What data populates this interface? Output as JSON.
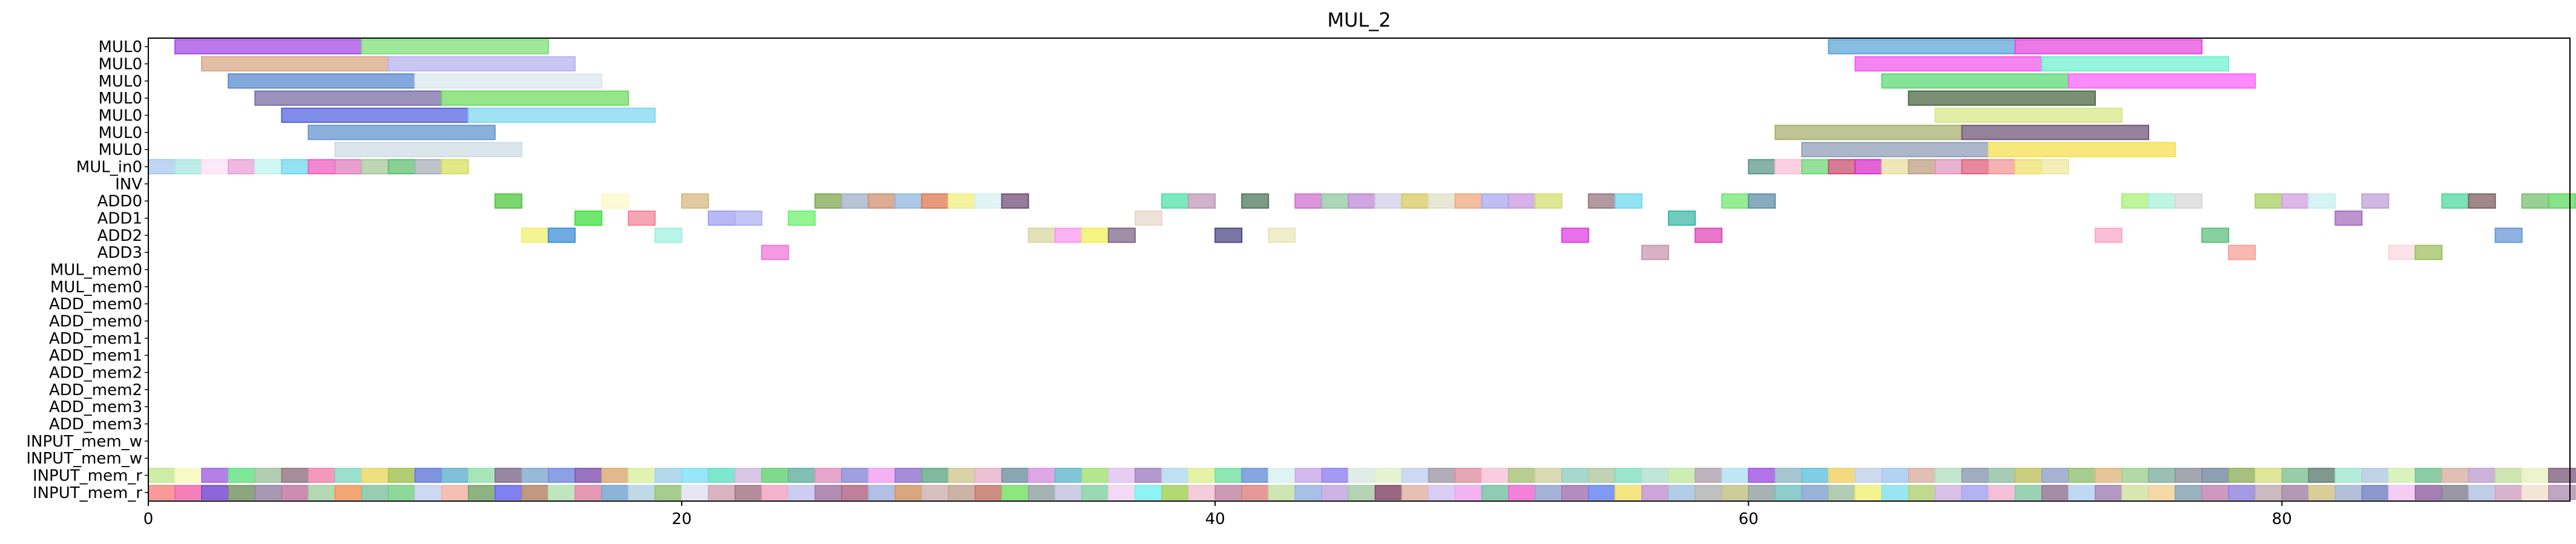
{
  "chart_data": {
    "type": "gantt",
    "title": "MUL_2",
    "xlim": [
      0,
      90.8
    ],
    "x_ticks": [
      0,
      20,
      40,
      60,
      80
    ],
    "rows": [
      "MUL0",
      "MUL0",
      "MUL0",
      "MUL0",
      "MUL0",
      "MUL0",
      "MUL0",
      "MUL_in0",
      "INV",
      "ADD0",
      "ADD1",
      "ADD2",
      "ADD3",
      "MUL_mem0",
      "MUL_mem0",
      "ADD_mem0",
      "ADD_mem0",
      "ADD_mem1",
      "ADD_mem1",
      "ADD_mem2",
      "ADD_mem2",
      "ADD_mem3",
      "ADD_mem3",
      "INPUT_mem_w",
      "INPUT_mem_w",
      "INPUT_mem_r",
      "INPUT_mem_r"
    ],
    "bars": [
      {
        "row": 0,
        "x0": 1.0,
        "x1": 8.0,
        "color": "#a64ce6"
      },
      {
        "row": 0,
        "x0": 8.0,
        "x1": 15.0,
        "color": "#7fe07a"
      },
      {
        "row": 0,
        "x0": 63.0,
        "x1": 70.0,
        "color": "#5fa6d9"
      },
      {
        "row": 0,
        "x0": 70.0,
        "x1": 77.0,
        "color": "#e64ce0"
      },
      {
        "row": 1,
        "x0": 2.0,
        "x1": 9.0,
        "color": "#d9a888"
      },
      {
        "row": 1,
        "x0": 9.0,
        "x1": 16.0,
        "color": "#b8b3f0"
      },
      {
        "row": 1,
        "x0": 64.0,
        "x1": 71.0,
        "color": "#f25cec"
      },
      {
        "row": 1,
        "x0": 71.0,
        "x1": 78.0,
        "color": "#70f0d0"
      },
      {
        "row": 2,
        "x0": 3.0,
        "x1": 10.0,
        "color": "#5a8cd0"
      },
      {
        "row": 2,
        "x0": 10.0,
        "x1": 17.0,
        "color": "#dbe8ee"
      },
      {
        "row": 2,
        "x0": 65.0,
        "x1": 72.0,
        "color": "#5cd978"
      },
      {
        "row": 2,
        "x0": 72.0,
        "x1": 79.0,
        "color": "#ff66ff"
      },
      {
        "row": 3,
        "x0": 4.0,
        "x1": 11.0,
        "color": "#7a6ea8"
      },
      {
        "row": 3,
        "x0": 11.0,
        "x1": 18.0,
        "color": "#70dd60"
      },
      {
        "row": 3,
        "x0": 66.0,
        "x1": 73.0,
        "color": "#4d6b45"
      },
      {
        "row": 4,
        "x0": 5.0,
        "x1": 12.0,
        "color": "#5566e0"
      },
      {
        "row": 4,
        "x0": 12.0,
        "x1": 19.0,
        "color": "#80d8f0"
      },
      {
        "row": 4,
        "x0": 67.0,
        "x1": 74.0,
        "color": "#d8e888"
      },
      {
        "row": 5,
        "x0": 6.0,
        "x1": 13.0,
        "color": "#6696d0"
      },
      {
        "row": 5,
        "x0": 61.0,
        "x1": 68.0,
        "color": "#a8b070"
      },
      {
        "row": 5,
        "x0": 68.0,
        "x1": 75.0,
        "color": "#705878"
      },
      {
        "row": 6,
        "x0": 7.0,
        "x1": 14.0,
        "color": "#cfdce6"
      },
      {
        "row": 6,
        "x0": 62.0,
        "x1": 69.0,
        "color": "#90a0b8"
      },
      {
        "row": 6,
        "x0": 69.0,
        "x1": 76.0,
        "color": "#f5e050"
      },
      {
        "row": 7,
        "x0": 0,
        "x1": 1,
        "color": "#a8c8f0"
      },
      {
        "row": 7,
        "x0": 1,
        "x1": 2,
        "color": "#a8e6e0"
      },
      {
        "row": 7,
        "x0": 2,
        "x1": 3,
        "color": "#fce0f4"
      },
      {
        "row": 7,
        "x0": 3,
        "x1": 4,
        "color": "#e8a0d8"
      },
      {
        "row": 7,
        "x0": 4,
        "x1": 5,
        "color": "#c0f4f0"
      },
      {
        "row": 7,
        "x0": 5,
        "x1": 6,
        "color": "#70d8ec"
      },
      {
        "row": 7,
        "x0": 6,
        "x1": 7,
        "color": "#f060c0"
      },
      {
        "row": 7,
        "x0": 7,
        "x1": 8,
        "color": "#e080c0"
      },
      {
        "row": 7,
        "x0": 8,
        "x1": 9,
        "color": "#a8c898"
      },
      {
        "row": 7,
        "x0": 9,
        "x1": 10,
        "color": "#60c070"
      },
      {
        "row": 7,
        "x0": 10,
        "x1": 11,
        "color": "#a8b0b8"
      },
      {
        "row": 7,
        "x0": 11,
        "x1": 12,
        "color": "#d8e060"
      },
      {
        "row": 7,
        "x0": 60,
        "x1": 61,
        "color": "#609888"
      },
      {
        "row": 7,
        "x0": 61,
        "x1": 62,
        "color": "#fcc0d8"
      },
      {
        "row": 7,
        "x0": 62,
        "x1": 63,
        "color": "#70d878"
      },
      {
        "row": 7,
        "x0": 63,
        "x1": 64,
        "color": "#c85070"
      },
      {
        "row": 7,
        "x0": 64,
        "x1": 65,
        "color": "#d830c8"
      },
      {
        "row": 7,
        "x0": 65,
        "x1": 66,
        "color": "#e8e0a0"
      },
      {
        "row": 7,
        "x0": 66,
        "x1": 67,
        "color": "#c0a080"
      },
      {
        "row": 7,
        "x0": 67,
        "x1": 68,
        "color": "#e098c0"
      },
      {
        "row": 7,
        "x0": 68,
        "x1": 69,
        "color": "#e06080"
      },
      {
        "row": 7,
        "x0": 69,
        "x1": 70,
        "color": "#f09898"
      },
      {
        "row": 7,
        "x0": 70,
        "x1": 71,
        "color": "#f0e070"
      },
      {
        "row": 7,
        "x0": 71,
        "x1": 72,
        "color": "#f0e8a0"
      },
      {
        "row": 9,
        "x0": 13,
        "x1": 14,
        "color": "#50c840"
      },
      {
        "row": 9,
        "x0": 17,
        "x1": 18,
        "color": "#fcf8c8"
      },
      {
        "row": 9,
        "x0": 20,
        "x1": 21,
        "color": "#d8b880"
      },
      {
        "row": 9,
        "x0": 25,
        "x1": 26,
        "color": "#80a850"
      },
      {
        "row": 9,
        "x0": 26,
        "x1": 27,
        "color": "#a0b0c8"
      },
      {
        "row": 9,
        "x0": 27,
        "x1": 28,
        "color": "#d09070"
      },
      {
        "row": 9,
        "x0": 28,
        "x1": 29,
        "color": "#90b8e0"
      },
      {
        "row": 9,
        "x0": 29,
        "x1": 30,
        "color": "#e07850"
      },
      {
        "row": 9,
        "x0": 30,
        "x1": 31,
        "color": "#f0f080"
      },
      {
        "row": 9,
        "x0": 31,
        "x1": 32,
        "color": "#d8f0f0"
      },
      {
        "row": 9,
        "x0": 32,
        "x1": 33,
        "color": "#705078"
      },
      {
        "row": 9,
        "x0": 38,
        "x1": 39,
        "color": "#50e0a8"
      },
      {
        "row": 9,
        "x0": 39,
        "x1": 40,
        "color": "#c098b8"
      },
      {
        "row": 9,
        "x0": 41,
        "x1": 42,
        "color": "#507860"
      },
      {
        "row": 9,
        "x0": 43,
        "x1": 44,
        "color": "#d070d0"
      },
      {
        "row": 9,
        "x0": 44,
        "x1": 45,
        "color": "#90c8a0"
      },
      {
        "row": 9,
        "x0": 45,
        "x1": 46,
        "color": "#c088d8"
      },
      {
        "row": 9,
        "x0": 46,
        "x1": 47,
        "color": "#d0d0e8"
      },
      {
        "row": 9,
        "x0": 47,
        "x1": 48,
        "color": "#d8c860"
      },
      {
        "row": 9,
        "x0": 48,
        "x1": 49,
        "color": "#e0e0c8"
      },
      {
        "row": 9,
        "x0": 49,
        "x1": 50,
        "color": "#f0a880"
      },
      {
        "row": 9,
        "x0": 50,
        "x1": 51,
        "color": "#a8a8f0"
      },
      {
        "row": 9,
        "x0": 51,
        "x1": 52,
        "color": "#c898e0"
      },
      {
        "row": 9,
        "x0": 52,
        "x1": 53,
        "color": "#d0e070"
      },
      {
        "row": 9,
        "x0": 54,
        "x1": 55,
        "color": "#987880"
      },
      {
        "row": 9,
        "x0": 55,
        "x1": 56,
        "color": "#70d8f0"
      },
      {
        "row": 9,
        "x0": 59,
        "x1": 60,
        "color": "#70e870"
      },
      {
        "row": 9,
        "x0": 60,
        "x1": 61,
        "color": "#6090a8"
      },
      {
        "row": 9,
        "x0": 74,
        "x1": 75,
        "color": "#a8f078"
      },
      {
        "row": 9,
        "x0": 75,
        "x1": 76,
        "color": "#a8f0d8"
      },
      {
        "row": 9,
        "x0": 76,
        "x1": 77,
        "color": "#d8d8d8"
      },
      {
        "row": 9,
        "x0": 79,
        "x1": 80,
        "color": "#a8d060"
      },
      {
        "row": 9,
        "x0": 80,
        "x1": 81,
        "color": "#d0a0e0"
      },
      {
        "row": 9,
        "x0": 81,
        "x1": 82,
        "color": "#c8f0f0"
      },
      {
        "row": 9,
        "x0": 83,
        "x1": 84,
        "color": "#c0a0d8"
      },
      {
        "row": 9,
        "x0": 86,
        "x1": 87,
        "color": "#50d8a0"
      },
      {
        "row": 9,
        "x0": 87,
        "x1": 88,
        "color": "#806060"
      },
      {
        "row": 9,
        "x0": 89,
        "x1": 90,
        "color": "#78c070"
      },
      {
        "row": 9,
        "x0": 90,
        "x1": 91,
        "color": "#60d860"
      },
      {
        "row": 10,
        "x0": 16,
        "x1": 17,
        "color": "#40e040"
      },
      {
        "row": 10,
        "x0": 18,
        "x1": 19,
        "color": "#f08898"
      },
      {
        "row": 10,
        "x0": 21,
        "x1": 22,
        "color": "#a0a0f0"
      },
      {
        "row": 10,
        "x0": 22,
        "x1": 23,
        "color": "#b0b0f0"
      },
      {
        "row": 10,
        "x0": 24,
        "x1": 25,
        "color": "#70f070"
      },
      {
        "row": 10,
        "x0": 37,
        "x1": 38,
        "color": "#e8d8c8"
      },
      {
        "row": 10,
        "x0": 57,
        "x1": 58,
        "color": "#40b8a8"
      },
      {
        "row": 10,
        "x0": 82,
        "x1": 83,
        "color": "#a870c0"
      },
      {
        "row": 11,
        "x0": 14,
        "x1": 15,
        "color": "#f0f070"
      },
      {
        "row": 11,
        "x0": 15,
        "x1": 16,
        "color": "#4090d8"
      },
      {
        "row": 11,
        "x0": 19,
        "x1": 20,
        "color": "#a0f0e0"
      },
      {
        "row": 11,
        "x0": 33,
        "x1": 34,
        "color": "#d8d8a0"
      },
      {
        "row": 11,
        "x0": 34,
        "x1": 35,
        "color": "#f898f0"
      },
      {
        "row": 11,
        "x0": 35,
        "x1": 36,
        "color": "#f0f058"
      },
      {
        "row": 11,
        "x0": 36,
        "x1": 37,
        "color": "#806888"
      },
      {
        "row": 11,
        "x0": 40,
        "x1": 41,
        "color": "#504888"
      },
      {
        "row": 11,
        "x0": 42,
        "x1": 43,
        "color": "#e8e8b8"
      },
      {
        "row": 11,
        "x0": 53,
        "x1": 54,
        "color": "#e040e0"
      },
      {
        "row": 11,
        "x0": 58,
        "x1": 59,
        "color": "#e048b8"
      },
      {
        "row": 11,
        "x0": 73,
        "x1": 74,
        "color": "#f8a8c8"
      },
      {
        "row": 11,
        "x0": 77,
        "x1": 78,
        "color": "#60c080"
      },
      {
        "row": 11,
        "x0": 88,
        "x1": 89,
        "color": "#6898d8"
      },
      {
        "row": 12,
        "x0": 23,
        "x1": 24,
        "color": "#f078d8"
      },
      {
        "row": 12,
        "x0": 56,
        "x1": 57,
        "color": "#c898b0"
      },
      {
        "row": 12,
        "x0": 78,
        "x1": 79,
        "color": "#f8a098"
      },
      {
        "row": 12,
        "x0": 84,
        "x1": 85,
        "color": "#f8d8e0"
      },
      {
        "row": 12,
        "x0": 85,
        "x1": 86,
        "color": "#a0c060"
      }
    ],
    "input_mem_w_colors": [
      "#c0e890",
      "#f8f8b8",
      "#a060e0",
      "#60e080",
      "#a0c0a0",
      "#907080",
      "#f080a8",
      "#80d8c0",
      "#e8d860",
      "#a0c050",
      "#6078d8",
      "#60b0d0",
      "#90e0a8",
      "#806888",
      "#80a8d0",
      "#7088e0",
      "#8050b0",
      "#d8a870",
      "#d8f0a0",
      "#a0d0e8",
      "#80e0f8",
      "#60e0c0",
      "#d0b8e0",
      "#60d070",
      "#60b0a0",
      "#e090c0",
      "#8888d8",
      "#f0a0f0",
      "#9070d0",
      "#60a888",
      "#d0c890",
      "#e8b0c8",
      "#7090a0",
      "#d890e0",
      "#60b8d0",
      "#a0e070",
      "#e0c0f0",
      "#a080c0",
      "#b0d8f0",
      "#e0f090",
      "#70e0a0",
      "#6890d8",
      "#d8f0f0",
      "#c8a8e8",
      "#9080f0",
      "#d8e8e0",
      "#e0f0c8",
      "#c0d0f0",
      "#a098a8",
      "#e090a0",
      "#f8c0d8",
      "#a8c078",
      "#d0d0a0",
      "#90d0c0",
      "#b0c8a0",
      "#80e0c0",
      "#b0e0d0",
      "#c0e8a0",
      "#b0a0b0",
      "#b0e0f0",
      "#a050e0",
      "#90b8c8",
      "#60c0e0",
      "#f0d060",
      "#c0d0e8",
      "#a0c8f0",
      "#d8b0a0",
      "#b0e0c0",
      "#8898b0",
      "#90c0a0",
      "#c0c060",
      "#90a0c8",
      "#90c070",
      "#e0b880",
      "#a0d090",
      "#80b0a0",
      "#9090a0",
      "#7088a0",
      "#90b060",
      "#d8e080",
      "#80c090",
      "#608070",
      "#a0e8d0",
      "#b0c8e0",
      "#d0f0b0",
      "#70c090",
      "#d8b0a0",
      "#c0a0d0",
      "#c0e0a0",
      "#e8f0c0",
      "#806080",
      "#a070b0"
    ],
    "input_mem_r_colors": [
      "#f88080",
      "#f060a8",
      "#7040d0",
      "#709060",
      "#9080a0",
      "#c070a0",
      "#a0d0a0",
      "#f09050",
      "#80c0a0",
      "#70d080",
      "#c0d0f0",
      "#f0b0a0",
      "#70a060",
      "#6060f0",
      "#b08060",
      "#b0e0b0",
      "#e080a0",
      "#70a0d0",
      "#b0d0e0",
      "#90c070",
      "#e0e0f0",
      "#d0a0b0",
      "#a07080",
      "#f0a0c0",
      "#c0c0f0",
      "#a070a0",
      "#b06080",
      "#a0b0e0",
      "#d09060",
      "#d0b0b0",
      "#c0a090",
      "#c07060",
      "#70e060",
      "#90a0a0",
      "#c0c0e0",
      "#80d0a0",
      "#f0d0f0",
      "#70f0f0",
      "#a0d050",
      "#f0c0d0",
      "#c080a0",
      "#e08080",
      "#c0e0a0",
      "#90b0e0",
      "#c0a0e0",
      "#a0c8a0",
      "#804060",
      "#e0b0a0",
      "#d0c0f0",
      "#f0a0f0",
      "#70c0a0",
      "#f060d0",
      "#90a0d0",
      "#a070b0",
      "#6080f0",
      "#f0e060",
      "#c090d0",
      "#a0c0e0",
      "#b0b0b0",
      "#c0c080",
      "#90a0a0",
      "#70c0c0",
      "#80a0d0",
      "#a0c0a0",
      "#f0f070",
      "#80e0f0",
      "#b0d070",
      "#d0b0e0",
      "#a0a0f0",
      "#f0b0d0",
      "#80c8a0",
      "#907090",
      "#b0d0f0",
      "#a080b0",
      "#d0e0a0",
      "#f0d090",
      "#80a0b0",
      "#c080b0",
      "#9080e0",
      "#c0a8b0",
      "#a080a0",
      "#d0c080",
      "#a0b0d0",
      "#7080c0",
      "#f0c0f0",
      "#9060a0",
      "#808090",
      "#b0c0e0",
      "#d0a0c0",
      "#f0e0d0",
      "#b090b0"
    ]
  }
}
